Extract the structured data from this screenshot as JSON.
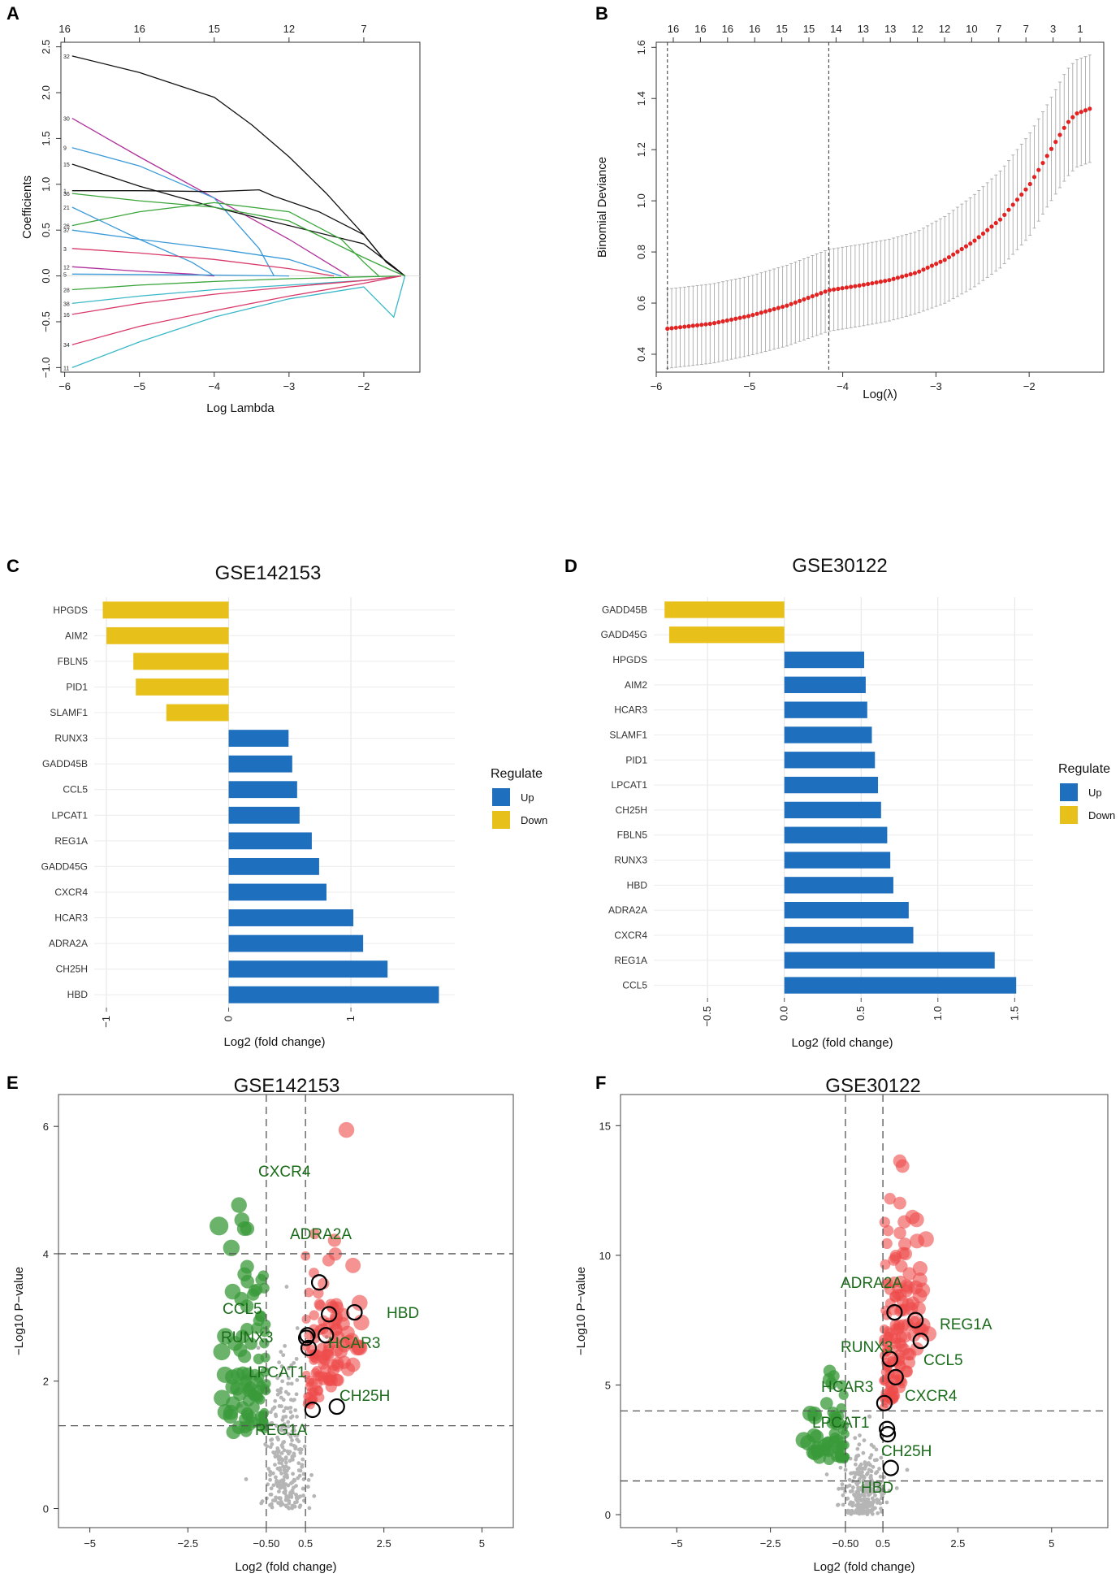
{
  "panel_letters": [
    "A",
    "B",
    "C",
    "D",
    "E",
    "F"
  ],
  "chart_data": [
    {
      "id": "A",
      "type": "line",
      "title": "",
      "xlabel": "Log Lambda",
      "ylabel": "Coefficients",
      "xlim": [
        -6.05,
        -1.25
      ],
      "ylim": [
        -1.05,
        2.55
      ],
      "xticks": [
        -6,
        -5,
        -4,
        -3,
        -2
      ],
      "yticks": [
        -1.0,
        -0.5,
        0.0,
        0.5,
        1.0,
        1.5,
        2.0,
        2.5
      ],
      "top_axis_labels": [
        "16",
        "16",
        "15",
        "12",
        "7"
      ],
      "top_axis_positions": [
        -6,
        -5,
        -4,
        -3,
        -2
      ],
      "series": [
        {
          "name": "32",
          "color": "#111111",
          "x": [
            -5.9,
            -5.0,
            -4.0,
            -3.5,
            -3.0,
            -2.5,
            -2.0,
            -1.7,
            -1.45
          ],
          "y": [
            2.4,
            2.22,
            1.95,
            1.65,
            1.3,
            0.9,
            0.45,
            0.15,
            0.0
          ]
        },
        {
          "name": "30",
          "color": "#b0309a",
          "x": [
            -5.9,
            -5.0,
            -4.0,
            -3.0,
            -2.5,
            -2.2
          ],
          "y": [
            1.72,
            1.3,
            0.85,
            0.4,
            0.15,
            0.0
          ]
        },
        {
          "name": "9",
          "color": "#3a9ad9",
          "x": [
            -5.9,
            -5.0,
            -4.0,
            -3.4,
            -3.2
          ],
          "y": [
            1.4,
            1.2,
            0.85,
            0.3,
            0.0
          ]
        },
        {
          "name": "15",
          "color": "#111111",
          "x": [
            -5.9,
            -5.0,
            -4.0,
            -3.0,
            -2.0,
            -1.6,
            -1.45
          ],
          "y": [
            1.22,
            0.98,
            0.75,
            0.55,
            0.35,
            0.1,
            0.0
          ]
        },
        {
          "name": "1",
          "color": "#111111",
          "x": [
            -5.9,
            -5.0,
            -4.0,
            -3.4,
            -3.2,
            -2.6,
            -2.0,
            -1.7,
            -1.45
          ],
          "y": [
            0.93,
            0.93,
            0.92,
            0.94,
            0.87,
            0.7,
            0.45,
            0.15,
            0.0
          ]
        },
        {
          "name": "36",
          "color": "#3aa53a",
          "x": [
            -5.9,
            -5.0,
            -4.0,
            -3.0,
            -2.5,
            -2.0,
            -1.6,
            -1.45
          ],
          "y": [
            0.9,
            0.82,
            0.75,
            0.6,
            0.4,
            0.2,
            0.05,
            0.0
          ]
        },
        {
          "name": "26",
          "color": "#3aa53a",
          "x": [
            -5.9,
            -5.0,
            -4.0,
            -3.0,
            -2.3,
            -2.0,
            -1.8
          ],
          "y": [
            0.55,
            0.7,
            0.8,
            0.7,
            0.4,
            0.15,
            0.0
          ]
        },
        {
          "name": "21",
          "color": "#3a9ad9",
          "x": [
            -5.9,
            -5.0,
            -4.3,
            -4.0
          ],
          "y": [
            0.75,
            0.4,
            0.15,
            0.0
          ]
        },
        {
          "name": "37",
          "color": "#3a9ad9",
          "x": [
            -5.9,
            -5.0,
            -4.0,
            -3.0,
            -2.5,
            -2.3
          ],
          "y": [
            0.5,
            0.4,
            0.3,
            0.18,
            0.05,
            0.0
          ]
        },
        {
          "name": "3",
          "color": "#d93a6a",
          "x": [
            -5.9,
            -5.0,
            -4.0,
            -3.0,
            -2.4
          ],
          "y": [
            0.3,
            0.25,
            0.18,
            0.08,
            0.0
          ]
        },
        {
          "name": "12",
          "color": "#b0309a",
          "x": [
            -5.9,
            -5.0,
            -4.3,
            -4.0
          ],
          "y": [
            0.1,
            0.05,
            0.02,
            0.0
          ]
        },
        {
          "name": "5",
          "color": "#3a9ad9",
          "x": [
            -5.9,
            -4.0,
            -3.0
          ],
          "y": [
            0.02,
            0.01,
            0.0
          ]
        },
        {
          "name": "28",
          "color": "#3aa53a",
          "x": [
            -5.9,
            -5.0,
            -4.0,
            -3.0,
            -2.0,
            -1.5
          ],
          "y": [
            -0.15,
            -0.1,
            -0.06,
            -0.03,
            -0.01,
            0.0
          ]
        },
        {
          "name": "38",
          "color": "#3ab8c8",
          "x": [
            -5.9,
            -5.0,
            -4.0,
            -3.0,
            -2.0,
            -1.5
          ],
          "y": [
            -0.3,
            -0.22,
            -0.15,
            -0.1,
            -0.05,
            0.0
          ]
        },
        {
          "name": "16",
          "color": "#d93a6a",
          "x": [
            -5.9,
            -5.0,
            -4.0,
            -3.0,
            -2.0,
            -1.5
          ],
          "y": [
            -0.42,
            -0.3,
            -0.2,
            -0.12,
            -0.05,
            0.0
          ]
        },
        {
          "name": "34",
          "color": "#d93a6a",
          "x": [
            -5.9,
            -5.0,
            -4.0,
            -3.0,
            -2.0,
            -1.5
          ],
          "y": [
            -0.75,
            -0.55,
            -0.38,
            -0.22,
            -0.08,
            0.0
          ]
        },
        {
          "name": "11",
          "color": "#3ab8c8",
          "x": [
            -5.9,
            -5.0,
            -4.0,
            -3.0,
            -2.0,
            -1.6,
            -1.45
          ],
          "y": [
            -1.0,
            -0.72,
            -0.45,
            -0.25,
            -0.12,
            -0.45,
            0.0
          ]
        }
      ]
    },
    {
      "id": "B",
      "type": "scatter",
      "title": "",
      "xlabel": "Log(λ)",
      "ylabel": "Binomial Deviance",
      "xlim": [
        -6.0,
        -1.2
      ],
      "ylim": [
        0.33,
        1.62
      ],
      "xticks": [
        -6,
        -5,
        -4,
        -3,
        -2
      ],
      "yticks": [
        0.4,
        0.6,
        0.8,
        1.0,
        1.2,
        1.4,
        1.6
      ],
      "top_axis_labels": [
        "16",
        "16",
        "16",
        "16",
        "15",
        "15",
        "14",
        "13",
        "13",
        "12",
        "12",
        "10",
        "7",
        "7",
        "3",
        "1"
      ],
      "vlines": [
        -5.88,
        -4.15
      ],
      "curve_points": {
        "x": [
          -5.88,
          -5.4,
          -5.0,
          -4.6,
          -4.15,
          -3.8,
          -3.5,
          -3.2,
          -2.9,
          -2.6,
          -2.3,
          -2.0,
          -1.8,
          -1.6,
          -1.5,
          -1.35
        ],
        "y": [
          0.5,
          0.52,
          0.55,
          0.59,
          0.65,
          0.67,
          0.69,
          0.72,
          0.77,
          0.84,
          0.93,
          1.06,
          1.18,
          1.3,
          1.34,
          1.36
        ],
        "err": [
          0.155,
          0.155,
          0.155,
          0.158,
          0.16,
          0.16,
          0.16,
          0.16,
          0.17,
          0.18,
          0.19,
          0.2,
          0.2,
          0.21,
          0.21,
          0.21
        ]
      },
      "point_color": "#e32222"
    },
    {
      "id": "C",
      "type": "bar",
      "title": "GSE142153",
      "xlabel": "Log2 (fold change)",
      "xlim": [
        -1.1,
        1.85
      ],
      "xticks": [
        -1,
        0,
        1
      ],
      "categories": [
        "HPGDS",
        "AIM2",
        "FBLN5",
        "PID1",
        "SLAMF1",
        "RUNX3",
        "GADD45B",
        "CCL5",
        "LPCAT1",
        "REG1A",
        "GADD45G",
        "CXCR4",
        "HCAR3",
        "ADRA2A",
        "CH25H",
        "HBD"
      ],
      "values": [
        -1.03,
        -1.0,
        -0.78,
        -0.76,
        -0.51,
        0.49,
        0.52,
        0.56,
        0.58,
        0.68,
        0.74,
        0.8,
        1.02,
        1.1,
        1.3,
        1.72
      ],
      "regulate": [
        "Down",
        "Down",
        "Down",
        "Down",
        "Down",
        "Up",
        "Up",
        "Up",
        "Up",
        "Up",
        "Up",
        "Up",
        "Up",
        "Up",
        "Up",
        "Up"
      ],
      "legend": {
        "title": "Regulate",
        "items": [
          {
            "label": "Up",
            "color": "#1f6fbf"
          },
          {
            "label": "Down",
            "color": "#e8c01a"
          }
        ]
      }
    },
    {
      "id": "D",
      "type": "bar",
      "title": "GSE30122",
      "xlabel": "Log2 (fold change)",
      "xlim": [
        -0.85,
        1.62
      ],
      "xticks": [
        -0.5,
        0.0,
        0.5,
        1.0,
        1.5
      ],
      "categories": [
        "GADD45B",
        "GADD45G",
        "HPGDS",
        "AIM2",
        "HCAR3",
        "SLAMF1",
        "PID1",
        "LPCAT1",
        "CH25H",
        "FBLN5",
        "RUNX3",
        "HBD",
        "ADRA2A",
        "CXCR4",
        "REG1A",
        "CCL5"
      ],
      "values": [
        -0.78,
        -0.75,
        0.52,
        0.53,
        0.54,
        0.57,
        0.59,
        0.61,
        0.63,
        0.67,
        0.69,
        0.71,
        0.81,
        0.84,
        1.37,
        1.51
      ],
      "regulate": [
        "Down",
        "Down",
        "Up",
        "Up",
        "Up",
        "Up",
        "Up",
        "Up",
        "Up",
        "Up",
        "Up",
        "Up",
        "Up",
        "Up",
        "Up",
        "Up"
      ],
      "legend": {
        "title": "Regulate",
        "items": [
          {
            "label": "Up",
            "color": "#1f6fbf"
          },
          {
            "label": "Down",
            "color": "#e8c01a"
          }
        ]
      }
    },
    {
      "id": "E",
      "type": "scatter",
      "title": "GSE142153",
      "xlabel": "Log2 (fold change)",
      "ylabel": "−Log10 P−value",
      "xlim": [
        -5.8,
        5.8
      ],
      "ylim": [
        -0.3,
        6.5
      ],
      "xticks": [
        -5,
        -2.5,
        -0.5,
        0.5,
        2.5,
        5
      ],
      "xtick_labels": [
        "−5",
        "−2.5",
        "−0.50",
        "0.5",
        "2.5",
        "5"
      ],
      "yticks": [
        0,
        2,
        4,
        6
      ],
      "hlines": [
        1.3,
        4.0
      ],
      "vlines": [
        -0.5,
        0.5
      ],
      "highlighted_genes": [
        {
          "label": "CXCR4",
          "x": 0.85,
          "y": 3.55
        },
        {
          "label": "ADRA2A",
          "x": 1.1,
          "y": 3.05
        },
        {
          "label": "HBD",
          "x": 1.75,
          "y": 3.08
        },
        {
          "label": "CCL5",
          "x": 0.55,
          "y": 2.72
        },
        {
          "label": "RUNX3",
          "x": 0.52,
          "y": 2.68
        },
        {
          "label": "HCAR3",
          "x": 1.02,
          "y": 2.72
        },
        {
          "label": "LPCAT1",
          "x": 0.58,
          "y": 2.52
        },
        {
          "label": "CH25H",
          "x": 1.3,
          "y": 1.6
        },
        {
          "label": "REG1A",
          "x": 0.68,
          "y": 1.55
        }
      ]
    },
    {
      "id": "F",
      "type": "scatter",
      "title": "GSE30122",
      "xlabel": "Log2 (fold change)",
      "ylabel": "−Log10 P−value",
      "xlim": [
        -6.5,
        6.5
      ],
      "ylim": [
        -0.5,
        16.2
      ],
      "xticks": [
        -5,
        -2.5,
        -0.5,
        0.5,
        2.5,
        5
      ],
      "xtick_labels": [
        "−5",
        "−2.5",
        "−0.50",
        "0.5",
        "2.5",
        "5"
      ],
      "yticks": [
        0,
        5,
        10,
        15
      ],
      "hlines": [
        1.3,
        4.0
      ],
      "vlines": [
        -0.5,
        0.5
      ],
      "highlighted_genes": [
        {
          "label": "ADRA2A",
          "x": 0.81,
          "y": 7.8
        },
        {
          "label": "REG1A",
          "x": 1.37,
          "y": 7.5
        },
        {
          "label": "RUNX3",
          "x": 0.69,
          "y": 6.0
        },
        {
          "label": "CCL5",
          "x": 1.51,
          "y": 6.7
        },
        {
          "label": "CXCR4",
          "x": 0.84,
          "y": 5.3
        },
        {
          "label": "HCAR3",
          "x": 0.54,
          "y": 4.3
        },
        {
          "label": "LPCAT1",
          "x": 0.61,
          "y": 3.3
        },
        {
          "label": "CH25H",
          "x": 0.63,
          "y": 3.1
        },
        {
          "label": "HBD",
          "x": 0.71,
          "y": 1.8
        }
      ]
    }
  ]
}
